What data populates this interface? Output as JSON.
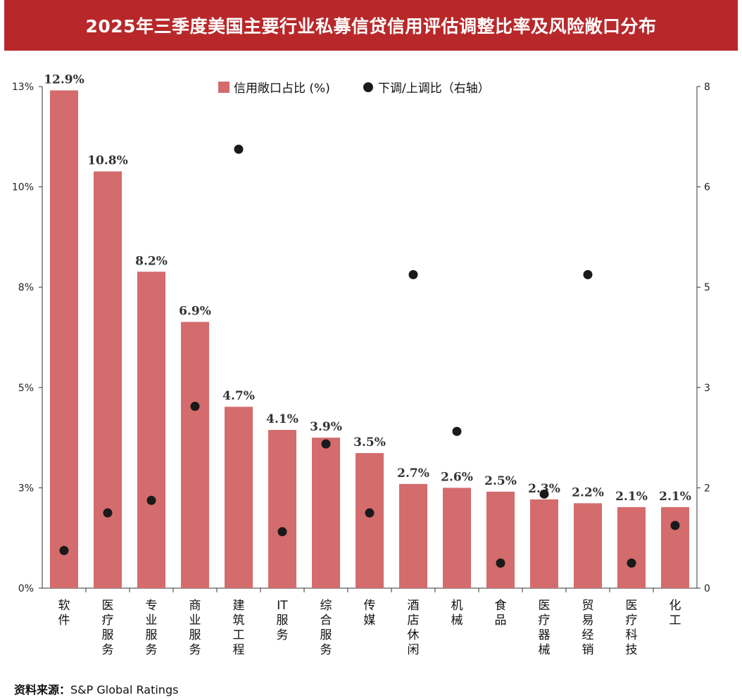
{
  "title": "2025年三季度美国主要行业私募信贷信用评估调整比率及风险敞口分布",
  "source_label": "资料来源：",
  "source_value": "S&P Global Ratings",
  "colors": {
    "title_bg": "#b8282a",
    "bar": "#d46b6c",
    "dot": "#1a1a1a"
  },
  "chart_data": {
    "type": "bar",
    "categories": [
      "软件",
      "医疗服务",
      "专业服务",
      "商业服务",
      "建筑工程",
      "IT服务",
      "综合服务",
      "传媒",
      "酒店休闲",
      "机械",
      "食品",
      "医疗器械",
      "贸易经销",
      "医疗科技",
      "化工"
    ],
    "series": [
      {
        "name": "信用敞口占比 (%)",
        "type": "bar",
        "axis": "left",
        "values": [
          12.9,
          10.8,
          8.2,
          6.9,
          4.7,
          4.1,
          3.9,
          3.5,
          2.7,
          2.6,
          2.5,
          2.3,
          2.2,
          2.1,
          2.1
        ],
        "labels": [
          "12.9%",
          "10.8%",
          "8.2%",
          "6.9%",
          "4.7%",
          "4.1%",
          "3.9%",
          "3.5%",
          "2.7%",
          "2.6%",
          "2.5%",
          "2.3%",
          "2.2%",
          "2.1%",
          "2.1%"
        ]
      },
      {
        "name": "下调/上调比（右轴）",
        "type": "scatter",
        "axis": "right",
        "values": [
          0.6,
          1.2,
          1.4,
          2.9,
          7.0,
          0.9,
          2.3,
          1.2,
          5.0,
          2.5,
          0.4,
          1.5,
          5.0,
          0.4,
          1.0
        ]
      }
    ],
    "left_axis": {
      "ylim": [
        0,
        13
      ],
      "ticks": [
        0,
        2.6,
        5.2,
        7.8,
        10.4,
        13
      ],
      "tick_labels": [
        "0%",
        "3%",
        "5%",
        "8%",
        "10%",
        "13%"
      ]
    },
    "right_axis": {
      "ylim": [
        0,
        8
      ],
      "ticks": [
        0,
        1.6,
        3.2,
        4.8,
        6.4,
        8
      ],
      "tick_labels": [
        "0",
        "2",
        "3",
        "5",
        "6",
        "8"
      ]
    },
    "legend_position": "top-center",
    "grid": false
  }
}
